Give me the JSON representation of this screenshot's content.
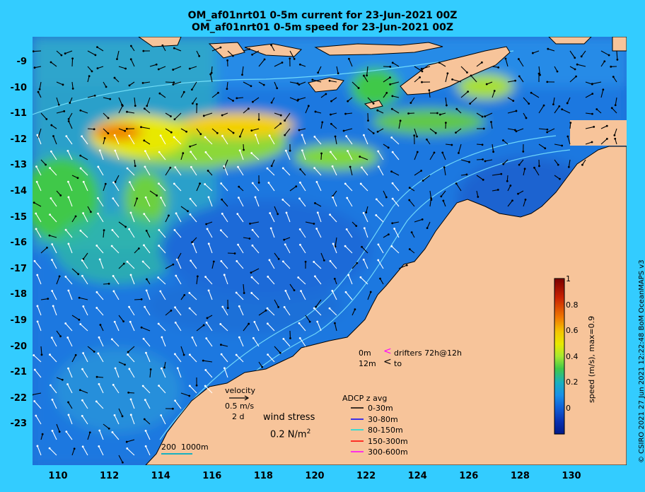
{
  "title_line1": "OM_af01nrt01 0-5m current for 23-Jun-2021 00Z",
  "title_line2": "OM_af01nrt01 0-5m speed for 23-Jun-2021 00Z",
  "y_ticks": [
    "-9",
    "-10",
    "-11",
    "-12",
    "-13",
    "-14",
    "-15",
    "-16",
    "-17",
    "-18",
    "-19",
    "-20",
    "-21",
    "-22",
    "-23"
  ],
  "x_ticks": [
    "110",
    "112",
    "114",
    "116",
    "118",
    "120",
    "122",
    "124",
    "126",
    "128",
    "130"
  ],
  "colorbar": {
    "ticks": [
      "1",
      "0.8",
      "0.6",
      "0.4",
      "0.2",
      "0"
    ],
    "title": "speed (m/s), max=0.9",
    "colors": [
      "#7a0000",
      "#c82000",
      "#f07800",
      "#f4c400",
      "#e8e800",
      "#a8e830",
      "#40c848",
      "#18b0c0",
      "#1890e8",
      "#1060d8",
      "#0830b0",
      "#001a88"
    ]
  },
  "copyright": "© CSIRO 2021   27 Jun 2021 12:22:48 BoM OceanMAPS v3",
  "velocity_legend": {
    "title": "velocity",
    "speed": "0.5 m/s",
    "duration": "2 d"
  },
  "wind_stress": {
    "label": "wind stress",
    "value": "0.2 N/m",
    "exponent": "2"
  },
  "drifters": {
    "depth1": "0m",
    "depth2": "12m",
    "marker1": "<",
    "marker2": "<",
    "label1": "drifters 72h@12h",
    "label2": "to"
  },
  "adcp": {
    "title": "ADCP z avg",
    "items": [
      {
        "label": "0-30m",
        "color": "#000000"
      },
      {
        "label": "30-80m",
        "color": "#0000ff"
      },
      {
        "label": "80-150m",
        "color": "#00e0e0"
      },
      {
        "label": "150-300m",
        "color": "#ff0000"
      },
      {
        "label": "300-600m",
        "color": "#ff00ff"
      }
    ]
  },
  "scale_bar": {
    "label1": "200",
    "label2": "1000m"
  },
  "colors": {
    "background": "#33ccff",
    "land": "#f7c49a",
    "ocean": "#1f6fd6"
  }
}
